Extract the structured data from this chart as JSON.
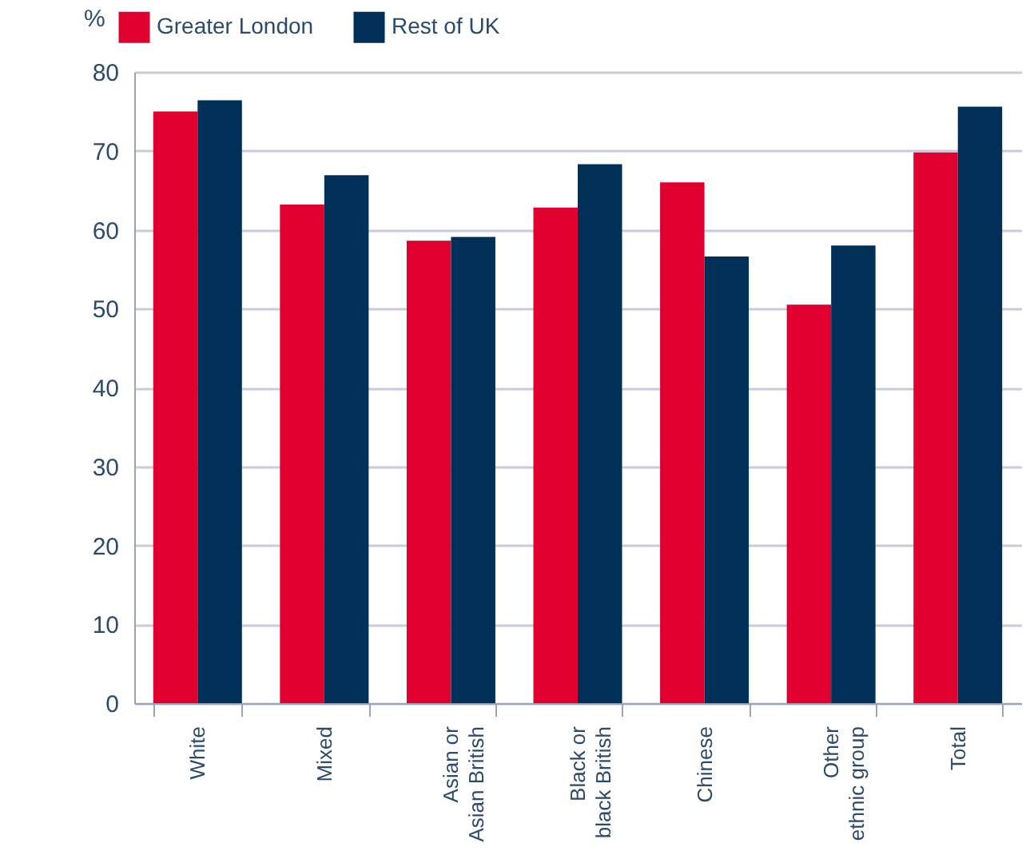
{
  "chart_data": {
    "type": "bar",
    "ylabel": "%",
    "categories": [
      "White",
      "Mixed",
      "Asian or\nAsian British",
      "Black or\nblack British",
      "Chinese",
      "Other\nethnic group",
      "Total"
    ],
    "series": [
      {
        "name": "Greater London",
        "color": "#e0002f",
        "values": [
          75.0,
          63.2,
          58.6,
          62.8,
          66.0,
          50.5,
          69.8
        ]
      },
      {
        "name": "Rest of UK",
        "color": "#003057",
        "values": [
          76.4,
          66.9,
          59.1,
          68.3,
          56.6,
          58.0,
          75.6
        ]
      }
    ],
    "ylim": [
      0,
      80
    ],
    "yticks": [
      0,
      10,
      20,
      30,
      40,
      50,
      60,
      70,
      80
    ],
    "grid": "y",
    "legend": "top left"
  }
}
